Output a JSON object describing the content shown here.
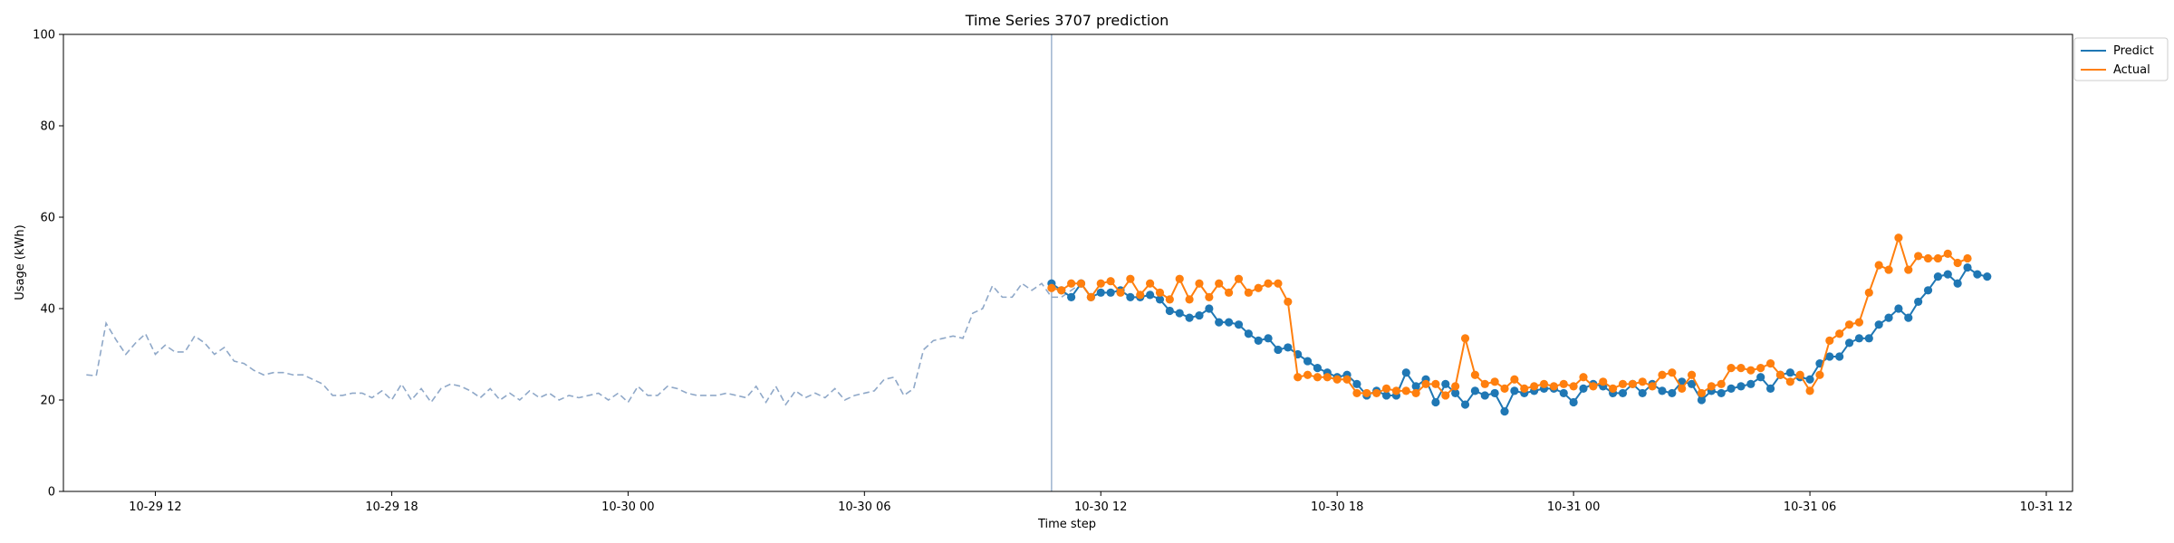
{
  "chart_data": {
    "type": "line",
    "title": "Time Series 3707 prediction",
    "xlabel": "Time step",
    "ylabel": "Usage (kWh)",
    "ylim": [
      0,
      100
    ],
    "xlim": [
      "2023-10-29T09:40",
      "2023-10-31T12:40"
    ],
    "x_ticks": [
      "10-29 12",
      "10-29 18",
      "10-30 00",
      "10-30 06",
      "10-30 12",
      "10-30 18",
      "10-31 00",
      "10-31 06",
      "10-31 12"
    ],
    "y_ticks": [
      0,
      20,
      40,
      60,
      80,
      100
    ],
    "grid": false,
    "legend_position": "upper-right-outside",
    "interval_minutes": 15,
    "history": {
      "start": "2023-10-29T10:15",
      "color": "#8fa8c8",
      "style": "dashed",
      "values": [
        25.5,
        25.3,
        36.8,
        33.2,
        30.0,
        32.5,
        34.5,
        30.0,
        32.0,
        30.5,
        30.5,
        34.0,
        32.5,
        30.0,
        31.5,
        28.5,
        28.0,
        26.5,
        25.5,
        26.0,
        26.0,
        25.5,
        25.5,
        24.5,
        23.5,
        21.0,
        21.0,
        21.5,
        21.5,
        20.5,
        22.0,
        20.0,
        23.5,
        20.0,
        22.5,
        19.5,
        22.5,
        23.5,
        23.0,
        22.0,
        20.5,
        22.5,
        20.0,
        21.5,
        20.0,
        22.0,
        20.5,
        21.5,
        20.0,
        21.0,
        20.5,
        21.0,
        21.5,
        20.0,
        21.5,
        19.5,
        23.0,
        21.0,
        21.0,
        23.0,
        22.5,
        21.5,
        21.0,
        21.0,
        21.0,
        21.5,
        21.0,
        20.5,
        23.0,
        19.5,
        23.0,
        19.0,
        22.0,
        20.5,
        21.5,
        20.5,
        22.5,
        20.0,
        21.0,
        21.5,
        22.0,
        24.5,
        25.0,
        21.0,
        22.5,
        31.0,
        33.0,
        33.5,
        34.0,
        33.5,
        39.0,
        40.0,
        45.0,
        42.5,
        42.5,
        45.5,
        44.0,
        45.5,
        42.5,
        42.5,
        44.0,
        45.5
      ]
    },
    "forecast_start": "2023-10-30T10:45",
    "forecast_start_color": "#8fa8c8",
    "series": [
      {
        "name": "Predict",
        "color": "#1f77b4",
        "start": "2023-10-30T10:45",
        "values": [
          45.5,
          44.0,
          42.5,
          45.5,
          42.5,
          43.5,
          43.5,
          44.0,
          42.5,
          42.5,
          43.0,
          42.0,
          39.5,
          39.0,
          38.0,
          38.5,
          40.0,
          37.0,
          37.0,
          36.5,
          34.5,
          33.0,
          33.5,
          31.0,
          31.5,
          30.0,
          28.5,
          27.0,
          26.0,
          25.0,
          25.5,
          23.5,
          21.0,
          22.0,
          21.0,
          21.0,
          26.0,
          23.0,
          24.5,
          19.5,
          23.5,
          21.5,
          19.0,
          22.0,
          21.0,
          21.5,
          17.5,
          22.0,
          21.5,
          22.0,
          22.5,
          22.5,
          21.5,
          19.5,
          22.5,
          23.5,
          23.0,
          21.5,
          21.5,
          23.5,
          21.5,
          23.5,
          22.0,
          21.5,
          24.0,
          23.5,
          20.0,
          22.0,
          21.5,
          22.5,
          23.0,
          23.5,
          25.0,
          22.5,
          25.5,
          26.0,
          25.0,
          24.5,
          28.0,
          29.5,
          29.5,
          32.5,
          33.5,
          33.5,
          36.5,
          38.0,
          40.0,
          38.0,
          41.5,
          44.0,
          47.0,
          47.5,
          45.5,
          49.0,
          47.5,
          47.0
        ]
      },
      {
        "name": "Actual",
        "color": "#ff7f0e",
        "start": "2023-10-30T10:45",
        "values": [
          44.5,
          44.0,
          45.5,
          45.5,
          42.5,
          45.5,
          46.0,
          43.5,
          46.5,
          43.0,
          45.5,
          43.5,
          42.0,
          46.5,
          42.0,
          45.5,
          42.5,
          45.5,
          43.5,
          46.5,
          43.5,
          44.5,
          45.5,
          45.5,
          41.5,
          25.0,
          25.5,
          25.0,
          25.0,
          24.5,
          24.5,
          21.5,
          21.5,
          21.5,
          22.5,
          22.0,
          22.0,
          21.5,
          23.5,
          23.5,
          21.0,
          23.0,
          33.5,
          25.5,
          23.5,
          24.0,
          22.5,
          24.5,
          22.5,
          23.0,
          23.5,
          23.0,
          23.5,
          23.0,
          25.0,
          23.0,
          24.0,
          22.5,
          23.5,
          23.5,
          24.0,
          23.0,
          25.5,
          26.0,
          22.5,
          25.5,
          21.5,
          23.0,
          23.5,
          27.0,
          27.0,
          26.5,
          27.0,
          28.0,
          25.5,
          24.0,
          25.5,
          22.0,
          25.5,
          33.0,
          34.5,
          36.5,
          37.0,
          43.5,
          49.5,
          48.5,
          55.5,
          48.5,
          51.5,
          51.0,
          51.0,
          52.0,
          50.0,
          51.0
        ]
      }
    ]
  }
}
